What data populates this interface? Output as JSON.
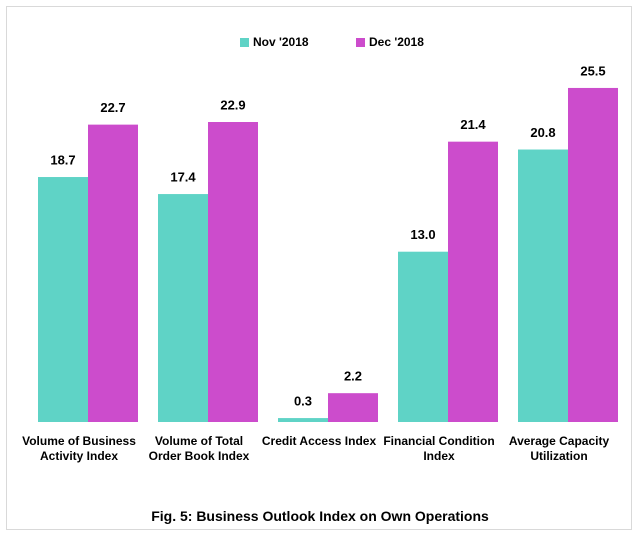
{
  "chart_data": {
    "type": "bar",
    "title": "Fig. 5: Business Outlook Index on Own Operations",
    "categories": [
      "Volume of Business Activity Index",
      "Volume of Total Order Book Index",
      "Credit Access Index",
      "Financial Condition Index",
      "Average Capacity Utilization"
    ],
    "series": [
      {
        "name": "Nov '2018",
        "color": "#5fd3c6",
        "values": [
          18.7,
          17.4,
          0.3,
          13.0,
          20.8
        ],
        "value_labels": [
          "18.7",
          "17.4",
          "0.3",
          "13.0",
          "20.8"
        ]
      },
      {
        "name": "Dec '2018",
        "color": "#cc4ccc",
        "values": [
          22.7,
          22.9,
          2.2,
          21.4,
          25.5
        ],
        "value_labels": [
          "22.7",
          "22.9",
          "2.2",
          "21.4",
          "25.5"
        ]
      }
    ],
    "ylim": [
      0,
      30
    ]
  }
}
